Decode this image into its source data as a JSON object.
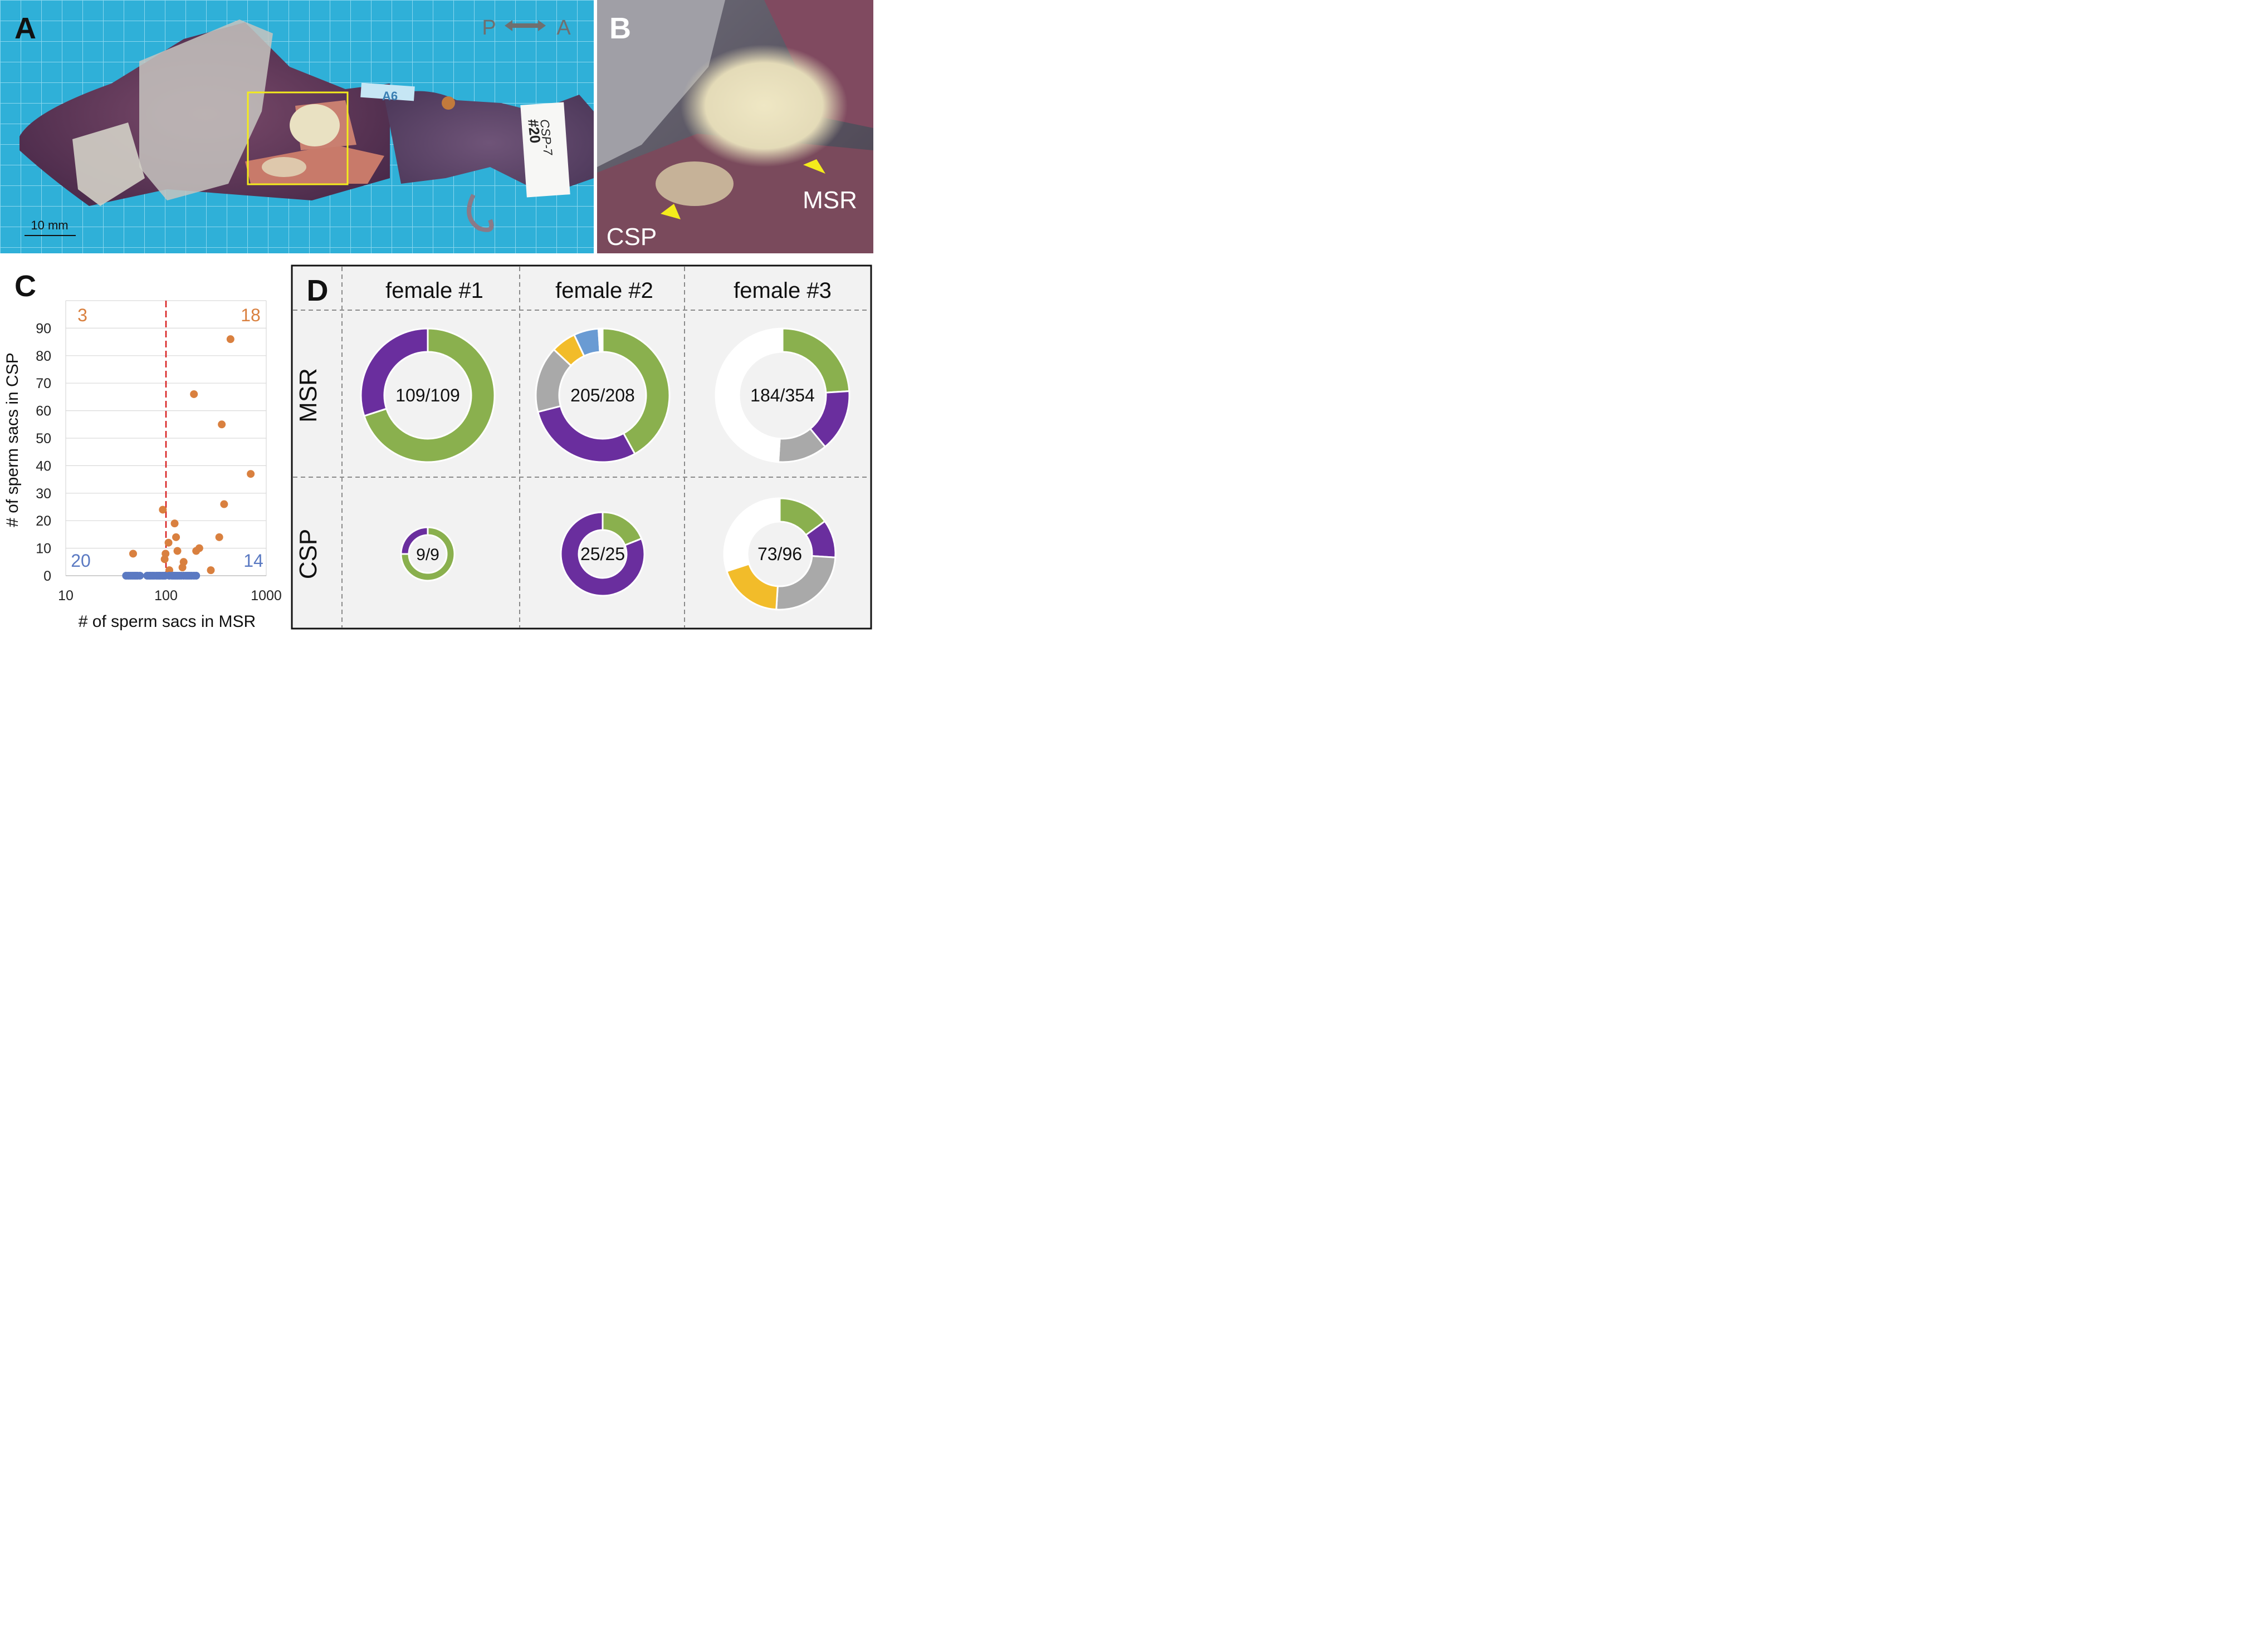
{
  "panels": {
    "a": {
      "label": "A",
      "orientation": {
        "posterior": "P",
        "anterior": "A"
      },
      "scale_bar": "10 mm",
      "tag_text": "A6",
      "specimen_label_line1": "CSP-7",
      "specimen_label_line2": "#20"
    },
    "b": {
      "label": "B",
      "arrow_labels": {
        "msr": "MSR",
        "csp": "CSP"
      }
    },
    "c": {
      "label": "C"
    },
    "d": {
      "label": "D",
      "columns": [
        "female #1",
        "female #2",
        "female #3"
      ],
      "rows": [
        "MSR",
        "CSP"
      ],
      "donuts": [
        {
          "row": "MSR",
          "female": "female #1",
          "label": "109/109",
          "segments": [
            {
              "color": "#8ab04e",
              "fraction": 0.7
            },
            {
              "color": "#6a2e9e",
              "fraction": 0.3
            }
          ]
        },
        {
          "row": "MSR",
          "female": "female #2",
          "label": "205/208",
          "segments": [
            {
              "color": "#8ab04e",
              "fraction": 0.42
            },
            {
              "color": "#6a2e9e",
              "fraction": 0.29
            },
            {
              "color": "#a9a9a9",
              "fraction": 0.16
            },
            {
              "color": "#f2bc2a",
              "fraction": 0.06
            },
            {
              "color": "#6a9bd3",
              "fraction": 0.06
            },
            {
              "color": "#ffffff",
              "fraction": 0.01
            }
          ]
        },
        {
          "row": "MSR",
          "female": "female #3",
          "label": "184/354",
          "segments": [
            {
              "color": "#8ab04e",
              "fraction": 0.24
            },
            {
              "color": "#6a2e9e",
              "fraction": 0.15
            },
            {
              "color": "#a9a9a9",
              "fraction": 0.12
            },
            {
              "color": "#ffffff",
              "fraction": 0.49
            }
          ]
        },
        {
          "row": "CSP",
          "female": "female #1",
          "label": "9/9",
          "segments": [
            {
              "color": "#8ab04e",
              "fraction": 0.75
            },
            {
              "color": "#6a2e9e",
              "fraction": 0.25
            }
          ]
        },
        {
          "row": "CSP",
          "female": "female #2",
          "label": "25/25",
          "segments": [
            {
              "color": "#8ab04e",
              "fraction": 0.19
            },
            {
              "color": "#6a2e9e",
              "fraction": 0.81
            }
          ]
        },
        {
          "row": "CSP",
          "female": "female #3",
          "label": "73/96",
          "segments": [
            {
              "color": "#8ab04e",
              "fraction": 0.15
            },
            {
              "color": "#6a2e9e",
              "fraction": 0.11
            },
            {
              "color": "#a9a9a9",
              "fraction": 0.25
            },
            {
              "color": "#f2bc2a",
              "fraction": 0.19
            },
            {
              "color": "#ffffff",
              "fraction": 0.3
            }
          ]
        }
      ]
    }
  },
  "chart_data": {
    "type": "scatter",
    "xlabel": "# of sperm sacs in MSR",
    "ylabel": "# of sperm sacs in CSP",
    "x_scale": "log",
    "xlim": [
      10,
      1000
    ],
    "ylim": [
      0,
      100
    ],
    "x_ticks": [
      "10",
      "100",
      "1000"
    ],
    "y_ticks": [
      "0",
      "10",
      "20",
      "30",
      "40",
      "50",
      "60",
      "70",
      "80",
      "90"
    ],
    "threshold_x": 100,
    "quadrant_counts": {
      "top_left": "3",
      "top_right": "18",
      "bottom_left": "20",
      "bottom_right": "14"
    },
    "colors": {
      "orange": "#d9803f",
      "blue": "#5a79c2",
      "threshold": "#d81e1e"
    },
    "series": [
      {
        "color": "orange",
        "points": [
          [
            47,
            8
          ],
          [
            93,
            24
          ],
          [
            97,
            6
          ],
          [
            99,
            8
          ],
          [
            106,
            12
          ],
          [
            108,
            2
          ],
          [
            122,
            19
          ],
          [
            126,
            14
          ],
          [
            130,
            9
          ],
          [
            146,
            3
          ],
          [
            150,
            5
          ],
          [
            190,
            66
          ],
          [
            200,
            9
          ],
          [
            215,
            10
          ],
          [
            280,
            2
          ],
          [
            340,
            14
          ],
          [
            360,
            55
          ],
          [
            380,
            26
          ],
          [
            440,
            86
          ],
          [
            700,
            37
          ]
        ]
      },
      {
        "color": "blue",
        "points": [
          [
            40,
            0
          ],
          [
            42,
            0
          ],
          [
            44,
            0
          ],
          [
            46,
            0
          ],
          [
            48,
            0
          ],
          [
            50,
            0
          ],
          [
            52,
            0
          ],
          [
            55,
            0
          ],
          [
            65,
            0
          ],
          [
            68,
            0
          ],
          [
            70,
            0
          ],
          [
            73,
            0
          ],
          [
            76,
            0
          ],
          [
            80,
            0
          ],
          [
            83,
            0
          ],
          [
            86,
            0
          ],
          [
            88,
            0
          ],
          [
            92,
            0
          ],
          [
            95,
            0
          ],
          [
            98,
            0
          ],
          [
            108,
            0
          ],
          [
            115,
            0
          ],
          [
            120,
            0
          ],
          [
            125,
            0
          ],
          [
            130,
            0
          ],
          [
            136,
            0
          ],
          [
            142,
            0
          ],
          [
            150,
            0
          ],
          [
            158,
            0
          ],
          [
            165,
            0
          ],
          [
            172,
            0
          ],
          [
            180,
            0
          ],
          [
            190,
            0
          ],
          [
            200,
            0
          ]
        ]
      }
    ]
  }
}
